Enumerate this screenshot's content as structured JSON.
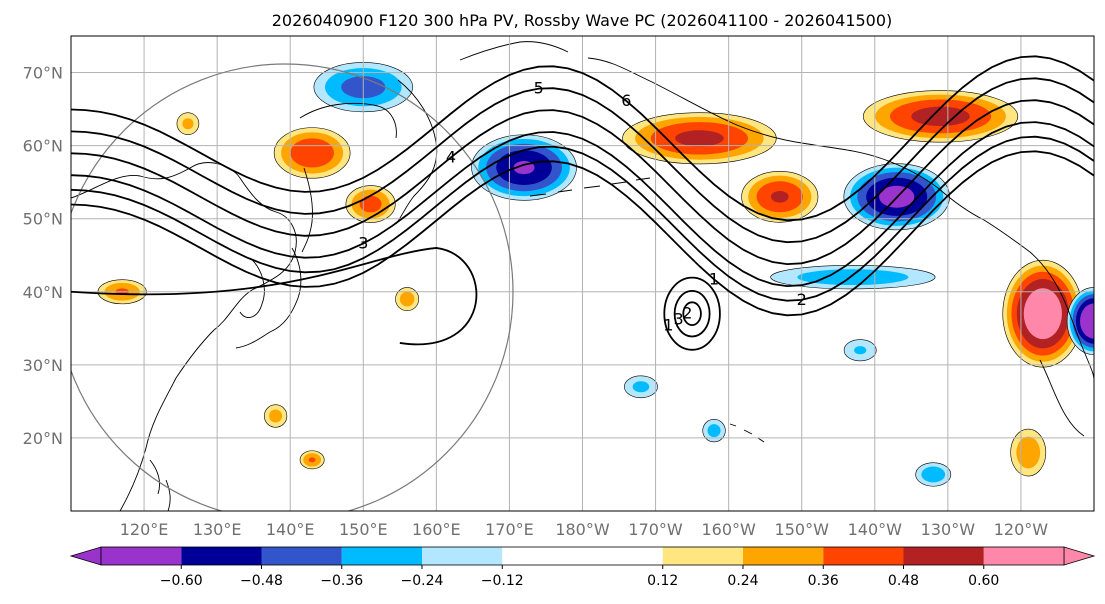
{
  "chart_data": {
    "type": "contour-map",
    "title": "2026040900 F120 300 hPa PV, Rossby Wave PC (2026041100 - 2026041500)",
    "lon_range": [
      110,
      250
    ],
    "lat_range": [
      10,
      75
    ],
    "x_ticks": [
      {
        "lon": 120,
        "label": "120°E"
      },
      {
        "lon": 130,
        "label": "130°E"
      },
      {
        "lon": 140,
        "label": "140°E"
      },
      {
        "lon": 150,
        "label": "150°E"
      },
      {
        "lon": 160,
        "label": "160°E"
      },
      {
        "lon": 170,
        "label": "170°E"
      },
      {
        "lon": 180,
        "label": "180°W"
      },
      {
        "lon": 190,
        "label": "170°W"
      },
      {
        "lon": 200,
        "label": "160°W"
      },
      {
        "lon": 210,
        "label": "150°W"
      },
      {
        "lon": 220,
        "label": "140°W"
      },
      {
        "lon": 230,
        "label": "130°W"
      },
      {
        "lon": 240,
        "label": "120°W"
      }
    ],
    "y_ticks": [
      {
        "lat": 20,
        "label": "20°N"
      },
      {
        "lat": 30,
        "label": "30°N"
      },
      {
        "lat": 40,
        "label": "40°N"
      },
      {
        "lat": 50,
        "label": "50°N"
      },
      {
        "lat": 60,
        "label": "60°N"
      },
      {
        "lat": 70,
        "label": "70°N"
      }
    ],
    "grid": true,
    "colorbar": {
      "levels": [
        -0.72,
        -0.6,
        -0.48,
        -0.36,
        -0.24,
        -0.12,
        0.12,
        0.24,
        0.36,
        0.48,
        0.6,
        0.72
      ],
      "tick_labels": [
        "−0.60",
        "−0.48",
        "−0.36",
        "−0.24",
        "−0.12",
        "0.12",
        "0.24",
        "0.36",
        "0.48",
        "0.60"
      ],
      "tick_values": [
        -0.6,
        -0.48,
        -0.36,
        -0.24,
        -0.12,
        0.12,
        0.24,
        0.36,
        0.48,
        0.6
      ],
      "colors": [
        "#9933cc",
        "#000099",
        "#3355cc",
        "#00bbff",
        "#b3e6ff",
        "#ffffff",
        "#ffe680",
        "#ffa500",
        "#ff4400",
        "#b22222",
        "#ff88aa"
      ],
      "extend": "both"
    },
    "shaded_anomalies": [
      {
        "lon": 150,
        "lat": 68,
        "sign": -1,
        "amp": 0.42,
        "rx": 8,
        "ry": 4
      },
      {
        "lon": 143,
        "lat": 59,
        "sign": 1,
        "amp": 0.48,
        "rx": 6,
        "ry": 4
      },
      {
        "lon": 151,
        "lat": 52,
        "sign": 1,
        "amp": 0.42,
        "rx": 4,
        "ry": 3
      },
      {
        "lon": 172,
        "lat": 57,
        "sign": -1,
        "amp": 0.62,
        "rx": 8,
        "ry": 5
      },
      {
        "lon": 196,
        "lat": 61,
        "sign": 1,
        "amp": 0.52,
        "rx": 12,
        "ry": 4
      },
      {
        "lon": 207,
        "lat": 53,
        "sign": 1,
        "amp": 0.5,
        "rx": 6,
        "ry": 4
      },
      {
        "lon": 223,
        "lat": 53,
        "sign": -1,
        "amp": 0.66,
        "rx": 8,
        "ry": 5
      },
      {
        "lon": 229,
        "lat": 64,
        "sign": 1,
        "amp": 0.54,
        "rx": 12,
        "ry": 4
      },
      {
        "lon": 243,
        "lat": 37,
        "sign": 1,
        "amp": 0.74,
        "rx": 6,
        "ry": 8
      },
      {
        "lon": 250,
        "lat": 36,
        "sign": -1,
        "amp": 0.78,
        "rx": 4,
        "ry": 5
      },
      {
        "lon": 217,
        "lat": 42,
        "sign": -1,
        "amp": 0.34,
        "rx": 14,
        "ry": 2
      },
      {
        "lon": 117,
        "lat": 40,
        "sign": 1,
        "amp": 0.38,
        "rx": 4,
        "ry": 2
      },
      {
        "lon": 156,
        "lat": 39,
        "sign": 1,
        "amp": 0.32,
        "rx": 2,
        "ry": 2
      },
      {
        "lon": 138,
        "lat": 23,
        "sign": 1,
        "amp": 0.3,
        "rx": 2,
        "ry": 2
      },
      {
        "lon": 143,
        "lat": 17,
        "sign": 1,
        "amp": 0.38,
        "rx": 2,
        "ry": 1.5
      },
      {
        "lon": 188,
        "lat": 27,
        "sign": -1,
        "amp": 0.28,
        "rx": 3,
        "ry": 2
      },
      {
        "lon": 241,
        "lat": 18,
        "sign": 1,
        "amp": 0.34,
        "rx": 3,
        "ry": 4
      },
      {
        "lon": 228,
        "lat": 15,
        "sign": -1,
        "amp": 0.34,
        "rx": 3,
        "ry": 2
      },
      {
        "lon": 198,
        "lat": 21,
        "sign": -1,
        "amp": 0.3,
        "rx": 2,
        "ry": 2
      },
      {
        "lon": 218,
        "lat": 32,
        "sign": -1,
        "amp": 0.26,
        "rx": 3,
        "ry": 2
      },
      {
        "lon": 126,
        "lat": 63,
        "sign": 1,
        "amp": 0.28,
        "rx": 2,
        "ry": 2
      }
    ],
    "contour_lines": [
      {
        "label": "3",
        "lat_off": 0
      },
      {
        "label": "4",
        "lat_off": 3
      },
      {
        "label": "5",
        "lat_off": 6
      },
      {
        "label": "6",
        "lat_off": 9
      },
      {
        "label": "1",
        "lat_off": -4
      },
      {
        "label": "2",
        "lat_off": -2
      }
    ],
    "cutoff_low": {
      "lon": 195,
      "lat": 37,
      "labels": [
        "2",
        "3",
        "1"
      ]
    }
  }
}
